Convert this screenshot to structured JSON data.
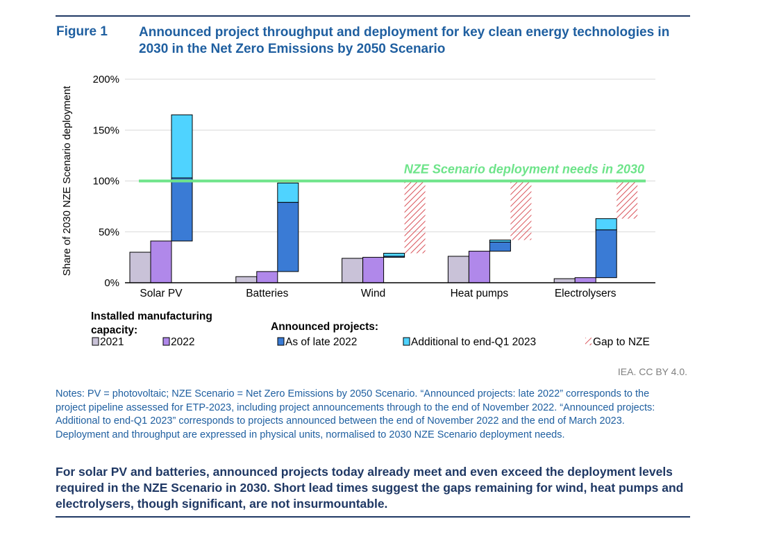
{
  "figure": {
    "label": "Figure 1",
    "title": "Announced project throughput and deployment for key clean energy technologies in 2030 in the Net Zero Emissions by 2050 Scenario"
  },
  "chart_data": {
    "type": "bar",
    "ylabel": "Share of 2030 NZE Scenario deployment",
    "ylim": [
      0,
      200
    ],
    "yticks": [
      {
        "value": 0,
        "label": "0%"
      },
      {
        "value": 50,
        "label": "50%"
      },
      {
        "value": 100,
        "label": "100%"
      },
      {
        "value": 150,
        "label": "150%"
      },
      {
        "value": 200,
        "label": "200%"
      }
    ],
    "categories": [
      "Solar PV",
      "Batteries",
      "Wind",
      "Heat pumps",
      "Electrolysers"
    ],
    "series": [
      {
        "name": "2021",
        "color": "#c9c2d8",
        "values": [
          30,
          6,
          24,
          26,
          4
        ]
      },
      {
        "name": "2022",
        "color": "#b088ea",
        "values": [
          41,
          11,
          25,
          31,
          5
        ]
      }
    ],
    "announced": [
      {
        "category": "Solar PV",
        "start": 41,
        "late_2022": 103,
        "end_q1_2023": 165,
        "gap_to": null
      },
      {
        "category": "Batteries",
        "start": 11,
        "late_2022": 79,
        "end_q1_2023": 98,
        "gap_to": null
      },
      {
        "category": "Wind",
        "start": 25,
        "late_2022": 26,
        "end_q1_2023": 29,
        "gap_to": 100
      },
      {
        "category": "Heat pumps",
        "start": 31,
        "late_2022": 40,
        "end_q1_2023": 42,
        "gap_to": 100
      },
      {
        "category": "Electrolysers",
        "start": 5,
        "late_2022": 52,
        "end_q1_2023": 63,
        "gap_to": 100
      }
    ],
    "reference_line": {
      "value": 100,
      "label": "NZE Scenario deployment needs in 2030",
      "color": "#6ee48a"
    },
    "colors": {
      "late_2022": "#3a7bd5",
      "additional_q1_2023": "#4fd3ff",
      "gap": "#d9535a",
      "grid": "#d9d9d9"
    },
    "legend": {
      "capacity_header": "Installed manufacturing capacity:",
      "projects_header": "Announced projects:",
      "items": {
        "y2021": "2021",
        "y2022": "2022",
        "late_2022": "As of late 2022",
        "additional": "Additional to end-Q1 2023",
        "gap": "Gap to NZE"
      },
      "placement": "bottom"
    },
    "grid": true
  },
  "credit": "IEA. CC BY 4.0.",
  "notes": "Notes: PV = photovoltaic; NZE Scenario = Net Zero Emissions by 2050 Scenario. “Announced projects: late 2022” corresponds to the project pipeline assessed for ETP-2023, including project announcements through to the end of November 2022. “Announced projects: Additional to end-Q1 2023” corresponds to projects announced between the end of November 2022 and the end of March 2023. Deployment and throughput are expressed in physical units, normalised to 2030 NZE Scenario deployment needs.",
  "takeaway": "For solar PV and batteries, announced projects today already meet and even exceed the deployment levels required in the NZE Scenario in 2030. Short lead times suggest the gaps remaining for wind, heat pumps and electrolysers, though significant, are not insurmountable."
}
